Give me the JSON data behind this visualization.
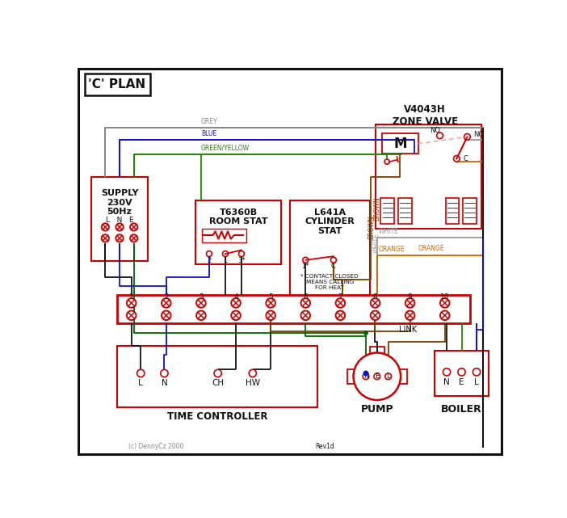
{
  "RED": "#cc0000",
  "BLACK": "#111111",
  "BLUE": "#1111cc",
  "GREEN": "#006600",
  "GREY": "#888888",
  "BROWN": "#7B3F00",
  "ORANGE": "#cc6600",
  "WHITE_W": "#999999",
  "GY": "#228800",
  "title": "'C' PLAN",
  "zone_valve_title": "V4043H\nZONE VALVE",
  "room_stat_title": "T6360B\nROOM STAT",
  "cyl_stat_title": "L641A\nCYLINDER\nSTAT",
  "supply_title": "SUPPLY\n230V\n50Hz",
  "supply_lne": "L  N  E",
  "time_ctrl_title": "TIME CONTROLLER",
  "pump_title": "PUMP",
  "boiler_title": "BOILER",
  "link_label": "LINK",
  "contact_note": "* CONTACT CLOSED\nMEANS CALLING\nFOR HEAT",
  "copyright": "(c) DennyCz 2000",
  "rev": "Rev1d",
  "wire_labels": {
    "grey": "GREY",
    "blue": "BLUE",
    "gy": "GREEN/YELLOW",
    "brown": "BROWN",
    "white": "WHITE",
    "orange": "ORANGE"
  }
}
